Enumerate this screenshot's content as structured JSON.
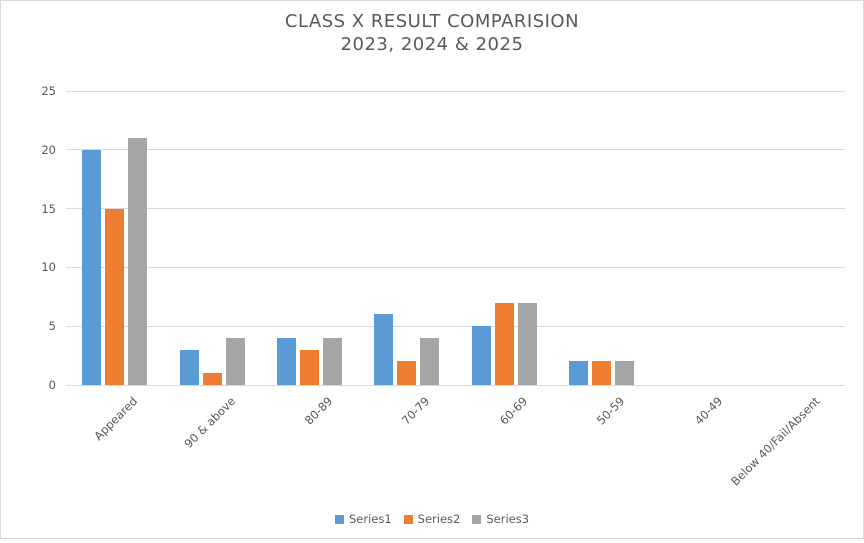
{
  "panel": {
    "background": "#ffffff",
    "border_color": "#d9d9d9"
  },
  "chart_data": {
    "type": "bar",
    "title_line1": "CLASS X RESULT COMPARISION",
    "title_line2": "2023, 2024 & 2025",
    "categories": [
      "Appeared",
      "90 & above",
      "80-89",
      "70-79",
      "60-69",
      "50-59",
      "40-49",
      "Below 40/Fail/Absent"
    ],
    "series": [
      {
        "name": "Series1",
        "color": "#5b9bd5",
        "values": [
          20,
          3,
          4,
          6,
          5,
          2,
          0,
          0
        ]
      },
      {
        "name": "Series2",
        "color": "#ed7d31",
        "values": [
          15,
          1,
          3,
          2,
          7,
          2,
          0,
          0
        ]
      },
      {
        "name": "Series3",
        "color": "#a5a5a5",
        "values": [
          21,
          4,
          4,
          4,
          7,
          2,
          0,
          0
        ]
      }
    ],
    "y_ticks": [
      0,
      5,
      10,
      15,
      20,
      25
    ],
    "ylim": [
      0,
      25
    ],
    "xlabel": "",
    "ylabel": "",
    "grid": true,
    "gridline_color": "#d9d9d9",
    "text_color": "#595959",
    "legend_position": "bottom"
  }
}
